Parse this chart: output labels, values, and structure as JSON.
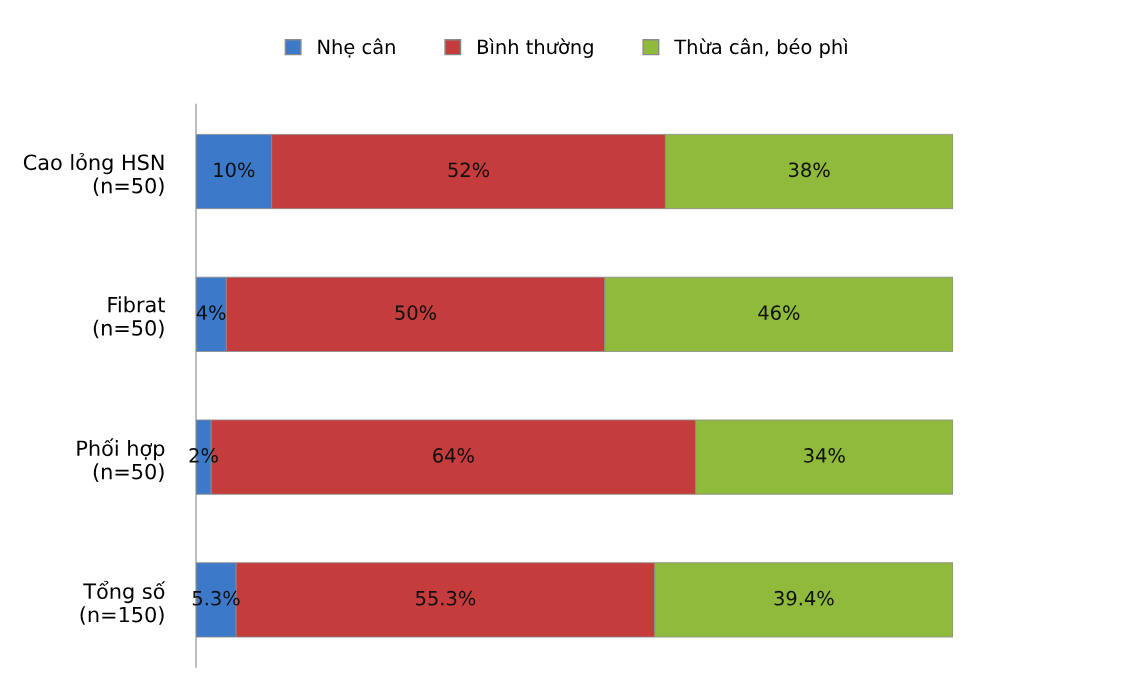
{
  "chart_data": {
    "type": "bar",
    "orientation": "horizontal",
    "stacked": true,
    "legend": "top",
    "grid": false,
    "tick_labels": "y",
    "categories": [
      "Cao lỏng HSN\n(n=50)",
      "Fibrat\n(n=50)",
      "Phối hợp\n(n=50)",
      "Tổng số\n(n=150)"
    ],
    "series": [
      {
        "name": "Nhẹ cân",
        "color": "#3c7ac9",
        "values": [
          10,
          4,
          2,
          5.3
        ],
        "value_labels": [
          "10%",
          "4%",
          "2%",
          "5.3%"
        ]
      },
      {
        "name": "Bình thường",
        "color": "#c43c3c",
        "values": [
          52,
          50,
          64,
          55.3
        ],
        "value_labels": [
          "52%",
          "50%",
          "64%",
          "55.3%"
        ]
      },
      {
        "name": "Thừa cân, béo phì",
        "color": "#8fba3c",
        "values": [
          38,
          46,
          34,
          39.4
        ],
        "value_labels": [
          "38%",
          "46%",
          "34%",
          "39.4%"
        ]
      }
    ]
  }
}
